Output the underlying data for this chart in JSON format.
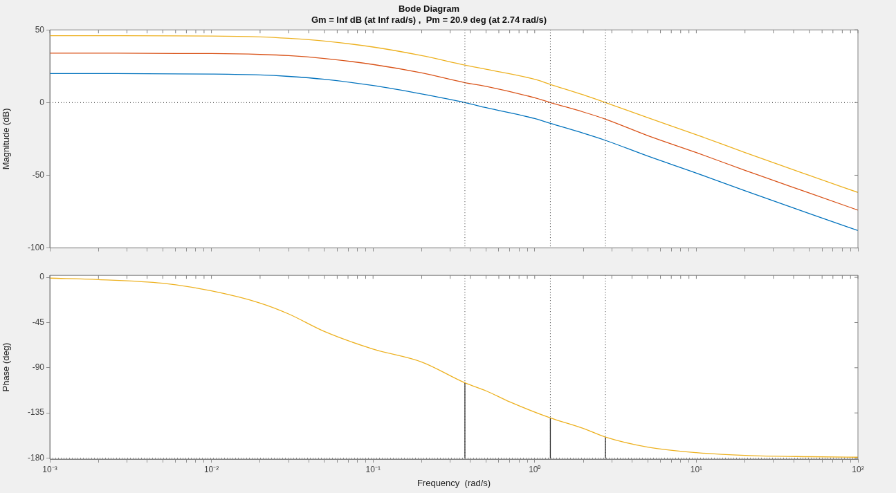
{
  "chart_data": [
    {
      "type": "line",
      "title": "Bode Diagram",
      "subtitle": "Gm = Inf dB (at Inf rad/s) ,  Pm = 20.9 deg (at 2.74 rad/s)",
      "ylabel": "Magnitude (dB)",
      "log": "x",
      "grid": false,
      "legend": false,
      "marker": "none",
      "line_style": "solid",
      "tick_labels": "y",
      "x": [
        0.001,
        0.01,
        0.02,
        0.03,
        0.05,
        0.1,
        0.2,
        0.37,
        0.5,
        1,
        1.25,
        2,
        2.74,
        5,
        10,
        20,
        50,
        100
      ],
      "series": [
        {
          "color": "#0072bd",
          "values": [
            20,
            19.6,
            19,
            18,
            16,
            11.7,
            5.9,
            0,
            -3.5,
            -11,
            -14.3,
            -21.1,
            -26,
            -36.8,
            -48.5,
            -60.7,
            -76.3,
            -88
          ]
        },
        {
          "color": "#d95319",
          "values": [
            34,
            33.7,
            33.1,
            32.3,
            30.3,
            26.2,
            20.4,
            13.7,
            11.2,
            3.3,
            0,
            -6.5,
            -11.4,
            -22.7,
            -34.4,
            -46.6,
            -62.2,
            -74
          ]
        },
        {
          "color": "#edb120",
          "values": [
            46,
            45.8,
            45.2,
            44.2,
            42.3,
            38.2,
            32.3,
            25.8,
            22.9,
            16,
            12.5,
            5.3,
            0,
            -10.4,
            -22.1,
            -34.4,
            -50.1,
            -61.8
          ]
        }
      ],
      "xlim": [
        0.001,
        100
      ],
      "xticks": [
        {
          "value": 0.001,
          "label": null
        },
        {
          "value": 0.002,
          "label": null
        },
        {
          "value": 0.003,
          "label": null
        },
        {
          "value": 0.004,
          "label": null
        },
        {
          "value": 0.005,
          "label": null
        },
        {
          "value": 0.006,
          "label": null
        },
        {
          "value": 0.007,
          "label": null
        },
        {
          "value": 0.008,
          "label": null
        },
        {
          "value": 0.009,
          "label": null
        },
        {
          "value": 0.01,
          "label": null
        },
        {
          "value": 0.02,
          "label": null
        },
        {
          "value": 0.03,
          "label": null
        },
        {
          "value": 0.04,
          "label": null
        },
        {
          "value": 0.05,
          "label": null
        },
        {
          "value": 0.06,
          "label": null
        },
        {
          "value": 0.07,
          "label": null
        },
        {
          "value": 0.08,
          "label": null
        },
        {
          "value": 0.09,
          "label": null
        },
        {
          "value": 0.1,
          "label": null
        },
        {
          "value": 0.2,
          "label": null
        },
        {
          "value": 0.3,
          "label": null
        },
        {
          "value": 0.4,
          "label": null
        },
        {
          "value": 0.5,
          "label": null
        },
        {
          "value": 0.6,
          "label": null
        },
        {
          "value": 0.7,
          "label": null
        },
        {
          "value": 0.8,
          "label": null
        },
        {
          "value": 0.9,
          "label": null
        },
        {
          "value": 1,
          "label": null
        },
        {
          "value": 2,
          "label": null
        },
        {
          "value": 3,
          "label": null
        },
        {
          "value": 4,
          "label": null
        },
        {
          "value": 5,
          "label": null
        },
        {
          "value": 6,
          "label": null
        },
        {
          "value": 7,
          "label": null
        },
        {
          "value": 8,
          "label": null
        },
        {
          "value": 9,
          "label": null
        },
        {
          "value": 10,
          "label": null
        },
        {
          "value": 20,
          "label": null
        },
        {
          "value": 30,
          "label": null
        },
        {
          "value": 40,
          "label": null
        },
        {
          "value": 50,
          "label": null
        },
        {
          "value": 60,
          "label": null
        },
        {
          "value": 70,
          "label": null
        },
        {
          "value": 80,
          "label": null
        },
        {
          "value": 90,
          "label": null
        },
        {
          "value": 100,
          "label": null
        }
      ],
      "ylim": [
        -100,
        50
      ],
      "yticks": [
        -100,
        -50,
        0,
        50
      ],
      "ref_lines": [
        {
          "axis": "y",
          "value": 0,
          "line_style": "dotted",
          "color": "#333333"
        },
        {
          "axis": "x",
          "value": 0.37,
          "line_style": "dotted",
          "color": "#333333"
        },
        {
          "axis": "x",
          "value": 1.25,
          "line_style": "dotted",
          "color": "#333333"
        },
        {
          "axis": "x",
          "value": 2.74,
          "line_style": "dotted",
          "color": "#333333"
        }
      ]
    },
    {
      "type": "line",
      "xlabel": "Frequency  (rad/s)",
      "ylabel": "Phase (deg)",
      "log": "x",
      "grid": false,
      "legend": false,
      "marker": "none",
      "line_style": "solid",
      "series": [
        {
          "color": "#edb120",
          "x": [
            0.001,
            0.002,
            0.005,
            0.01,
            0.02,
            0.03,
            0.05,
            0.1,
            0.2,
            0.37,
            0.5,
            0.7,
            1.25,
            2,
            2.74,
            5,
            10,
            20,
            50,
            100
          ],
          "values": [
            -0.8,
            -2.2,
            -5.9,
            -13.5,
            -25.6,
            -36.4,
            -53.9,
            -71.4,
            -84.3,
            -105,
            -113,
            -124,
            -140,
            -150.5,
            -159,
            -169,
            -174.6,
            -177.3,
            -178.6,
            -179.1
          ]
        },
        {
          "color": "#333333",
          "x": [
            0.37,
            0.37
          ],
          "values": [
            -180,
            -105
          ]
        },
        {
          "color": "#333333",
          "x": [
            1.25,
            1.25
          ],
          "values": [
            -180,
            -140
          ]
        },
        {
          "color": "#333333",
          "x": [
            2.74,
            2.74
          ],
          "values": [
            -180,
            -159
          ]
        }
      ],
      "xlim": [
        0.001,
        100
      ],
      "xticks": [
        {
          "value": 0.001,
          "label": "10⁻³"
        },
        {
          "value": 0.002,
          "label": null
        },
        {
          "value": 0.003,
          "label": null
        },
        {
          "value": 0.004,
          "label": null
        },
        {
          "value": 0.005,
          "label": null
        },
        {
          "value": 0.006,
          "label": null
        },
        {
          "value": 0.007,
          "label": null
        },
        {
          "value": 0.008,
          "label": null
        },
        {
          "value": 0.009,
          "label": null
        },
        {
          "value": 0.01,
          "label": "10⁻²"
        },
        {
          "value": 0.02,
          "label": null
        },
        {
          "value": 0.03,
          "label": null
        },
        {
          "value": 0.04,
          "label": null
        },
        {
          "value": 0.05,
          "label": null
        },
        {
          "value": 0.06,
          "label": null
        },
        {
          "value": 0.07,
          "label": null
        },
        {
          "value": 0.08,
          "label": null
        },
        {
          "value": 0.09,
          "label": null
        },
        {
          "value": 0.1,
          "label": "10⁻¹"
        },
        {
          "value": 0.2,
          "label": null
        },
        {
          "value": 0.3,
          "label": null
        },
        {
          "value": 0.4,
          "label": null
        },
        {
          "value": 0.5,
          "label": null
        },
        {
          "value": 0.6,
          "label": null
        },
        {
          "value": 0.7,
          "label": null
        },
        {
          "value": 0.8,
          "label": null
        },
        {
          "value": 0.9,
          "label": null
        },
        {
          "value": 1,
          "label": "10⁰"
        },
        {
          "value": 2,
          "label": null
        },
        {
          "value": 3,
          "label": null
        },
        {
          "value": 4,
          "label": null
        },
        {
          "value": 5,
          "label": null
        },
        {
          "value": 6,
          "label": null
        },
        {
          "value": 7,
          "label": null
        },
        {
          "value": 8,
          "label": null
        },
        {
          "value": 9,
          "label": null
        },
        {
          "value": 10,
          "label": "10¹"
        },
        {
          "value": 20,
          "label": null
        },
        {
          "value": 30,
          "label": null
        },
        {
          "value": 40,
          "label": null
        },
        {
          "value": 50,
          "label": null
        },
        {
          "value": 60,
          "label": null
        },
        {
          "value": 70,
          "label": null
        },
        {
          "value": 80,
          "label": null
        },
        {
          "value": 90,
          "label": null
        },
        {
          "value": 100,
          "label": "10²"
        }
      ],
      "ylim": [
        -181,
        2
      ],
      "yticks": [
        -180,
        -135,
        -90,
        -45,
        0
      ],
      "ref_lines": [
        {
          "axis": "y",
          "value": -180,
          "line_style": "dotted",
          "color": "#333333"
        },
        {
          "axis": "x",
          "value": 0.37,
          "line_style": "dotted",
          "color": "#333333"
        },
        {
          "axis": "x",
          "value": 1.25,
          "line_style": "dotted",
          "color": "#333333"
        },
        {
          "axis": "x",
          "value": 2.74,
          "line_style": "dotted",
          "color": "#333333"
        }
      ]
    }
  ]
}
